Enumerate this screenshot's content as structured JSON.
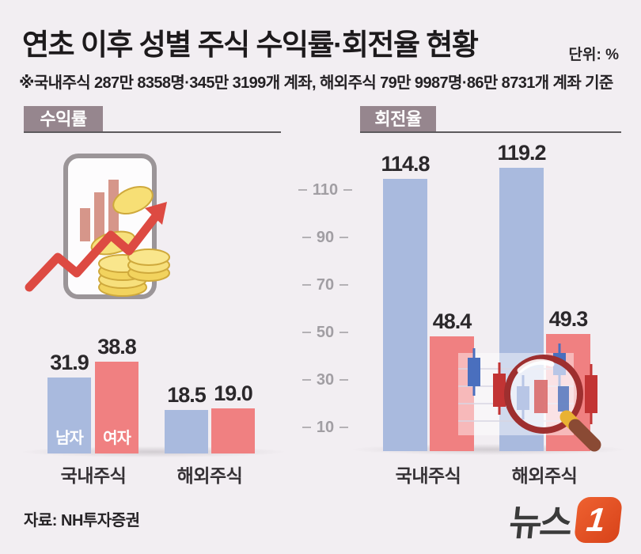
{
  "header": {
    "title": "연초 이후 성별 주식 수익률·회전율 현황",
    "unit": "단위: %",
    "subtitle": "※국내주식 287만 8358명·345만 3199개 계좌, 해외주식 79만 9987명·86만 8731개 계좌 기준"
  },
  "colors": {
    "background": "#f2eef2",
    "male_bar": "#a9bade",
    "female_bar": "#f08081",
    "badge": "#96868e",
    "logo_orange": "#d8431a"
  },
  "chart_data": [
    {
      "type": "bar",
      "title": "수익률",
      "unit": "%",
      "categories": [
        "국내주식",
        "해외주식"
      ],
      "series": [
        {
          "name": "남자",
          "color": "#a9bade",
          "values": [
            31.9,
            18.5
          ],
          "labels": [
            "31.9",
            "18.5"
          ]
        },
        {
          "name": "여자",
          "color": "#f08081",
          "values": [
            38.8,
            19.0
          ],
          "labels": [
            "38.8",
            "19.0"
          ]
        }
      ],
      "legend_position": "inside-first-bars",
      "grid": false
    },
    {
      "type": "bar",
      "title": "회전율",
      "unit": "%",
      "categories": [
        "국내주식",
        "해외주식"
      ],
      "series": [
        {
          "name": "남자",
          "color": "#a9bade",
          "values": [
            114.8,
            119.2
          ],
          "labels": [
            "114.8",
            "119.2"
          ]
        },
        {
          "name": "여자",
          "color": "#f08081",
          "values": [
            48.4,
            49.3
          ],
          "labels": [
            "48.4",
            "49.3"
          ]
        }
      ],
      "yticks": [
        110,
        90,
        70,
        50,
        30,
        10
      ],
      "ylim": [
        0,
        125
      ],
      "grid": false
    }
  ],
  "footer": {
    "source": "자료: NH투자증권",
    "logo_text": "뉴스",
    "logo_numeral": "1"
  }
}
